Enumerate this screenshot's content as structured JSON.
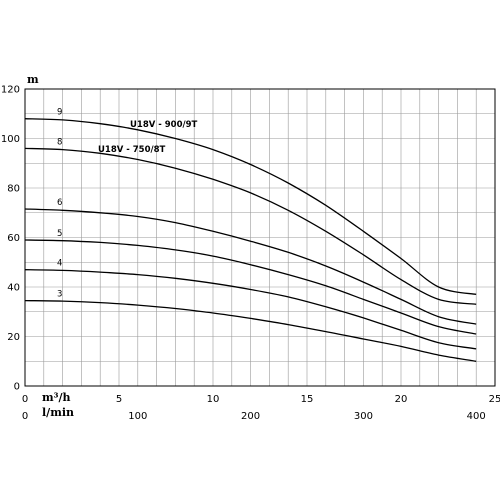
{
  "chart_data": {
    "type": "line",
    "ylabel": "m",
    "x_units": {
      "primary": "m³/h",
      "secondary": "l/min"
    },
    "x_ticks_m3h": [
      "0",
      "5",
      "10",
      "15",
      "20",
      "25"
    ],
    "x_ticks_lmin": [
      "0",
      "100",
      "200",
      "300",
      "400"
    ],
    "y_ticks": [
      "0",
      "20",
      "40",
      "60",
      "80",
      "100",
      "120"
    ],
    "xlim_m3h": [
      0,
      25
    ],
    "ylim": [
      0,
      120
    ],
    "grid": true,
    "model_labels": [
      "U18V - 900/9T",
      "U18V - 750/8T"
    ],
    "series": [
      {
        "name": "9",
        "x": [
          0,
          2,
          4,
          6,
          8,
          10,
          12,
          14,
          16,
          18,
          20,
          22,
          24
        ],
        "y": [
          108,
          107.5,
          106,
          103.5,
          100,
          95.5,
          89.5,
          82,
          73,
          62.5,
          51.5,
          40,
          37
        ]
      },
      {
        "name": "8",
        "x": [
          0,
          2,
          4,
          6,
          8,
          10,
          12,
          14,
          16,
          18,
          20,
          22,
          24
        ],
        "y": [
          96,
          95.5,
          94,
          91.5,
          88,
          83.5,
          78,
          71,
          62.5,
          53,
          43,
          35,
          33
        ]
      },
      {
        "name": "6",
        "x": [
          0,
          2,
          4,
          6,
          8,
          10,
          12,
          14,
          16,
          18,
          20,
          22,
          24
        ],
        "y": [
          71.5,
          71,
          70,
          68.5,
          66,
          62.5,
          58.5,
          54,
          48.5,
          42,
          35,
          28,
          25
        ]
      },
      {
        "name": "5",
        "x": [
          0,
          2,
          4,
          6,
          8,
          10,
          12,
          14,
          16,
          18,
          20,
          22,
          24
        ],
        "y": [
          59,
          58.7,
          58,
          56.8,
          55,
          52.5,
          49,
          45,
          40.5,
          35,
          29.5,
          24,
          21
        ]
      },
      {
        "name": "4",
        "x": [
          0,
          2,
          4,
          6,
          8,
          10,
          12,
          14,
          16,
          18,
          20,
          22,
          24
        ],
        "y": [
          47,
          46.7,
          46,
          45,
          43.5,
          41.5,
          39,
          36,
          32,
          27.5,
          22.5,
          17.5,
          15
        ]
      },
      {
        "name": "3",
        "x": [
          0,
          2,
          4,
          6,
          8,
          10,
          12,
          14,
          16,
          18,
          20,
          22,
          24
        ],
        "y": [
          34.5,
          34.3,
          33.7,
          32.7,
          31.3,
          29.5,
          27.3,
          24.8,
          22,
          19,
          16,
          12.5,
          10
        ]
      }
    ]
  }
}
